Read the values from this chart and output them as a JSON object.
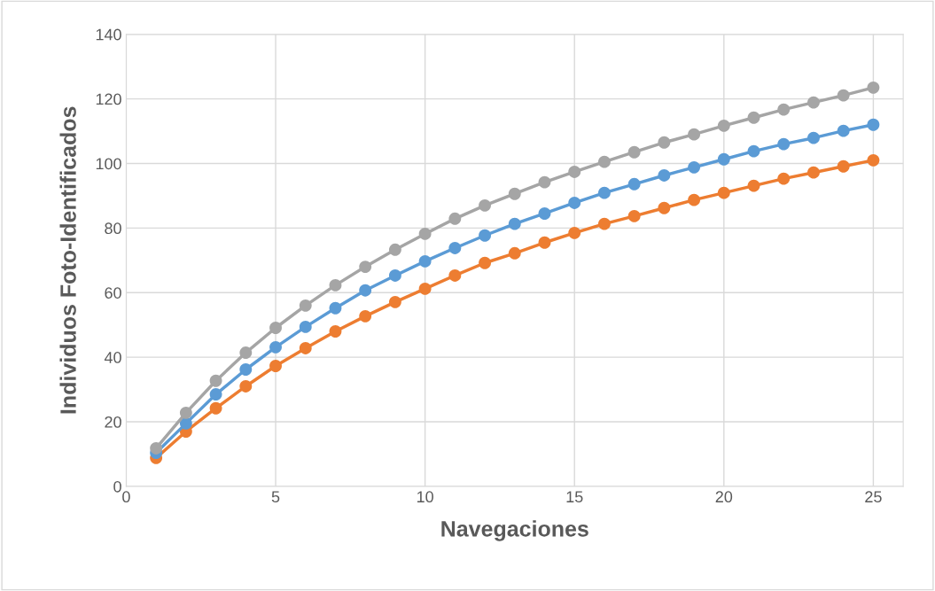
{
  "chart_data": {
    "type": "line",
    "xlabel": "Navegaciones",
    "ylabel": "Individuos Foto-Identificados",
    "x": [
      1,
      2,
      3,
      4,
      5,
      6,
      7,
      8,
      9,
      10,
      11,
      12,
      13,
      14,
      15,
      16,
      17,
      18,
      19,
      20,
      21,
      22,
      23,
      24,
      25
    ],
    "series": [
      {
        "color": "#ed7d31",
        "values": [
          8.8,
          17.0,
          24.2,
          31.0,
          37.3,
          42.8,
          48.0,
          52.7,
          57.1,
          61.2,
          65.3,
          69.2,
          72.2,
          75.5,
          78.5,
          81.3,
          83.7,
          86.2,
          88.7,
          90.9,
          93.1,
          95.3,
          97.2,
          99.1,
          101.0
        ]
      },
      {
        "color": "#5b9bd5",
        "values": [
          10.4,
          19.5,
          28.5,
          36.2,
          43.1,
          49.4,
          55.2,
          60.7,
          65.3,
          69.7,
          73.8,
          77.7,
          81.3,
          84.5,
          87.8,
          90.9,
          93.6,
          96.3,
          98.8,
          101.3,
          103.8,
          106.0,
          107.9,
          110.1,
          112.0
        ]
      },
      {
        "color": "#a5a5a5",
        "values": [
          11.8,
          22.8,
          32.7,
          41.4,
          49.1,
          56.0,
          62.3,
          68.0,
          73.3,
          78.2,
          82.9,
          87.0,
          90.6,
          94.2,
          97.4,
          100.5,
          103.5,
          106.5,
          109.0,
          111.7,
          114.2,
          116.7,
          118.9,
          121.1,
          123.5
        ]
      }
    ],
    "xlim": [
      0,
      26
    ],
    "xticks": [
      0,
      5,
      10,
      15,
      20,
      25
    ],
    "ylim": [
      0,
      140
    ],
    "yticks": [
      0,
      20,
      40,
      60,
      80,
      100,
      120,
      140
    ],
    "grid": true,
    "marker": "circle",
    "line_style": "solid"
  }
}
